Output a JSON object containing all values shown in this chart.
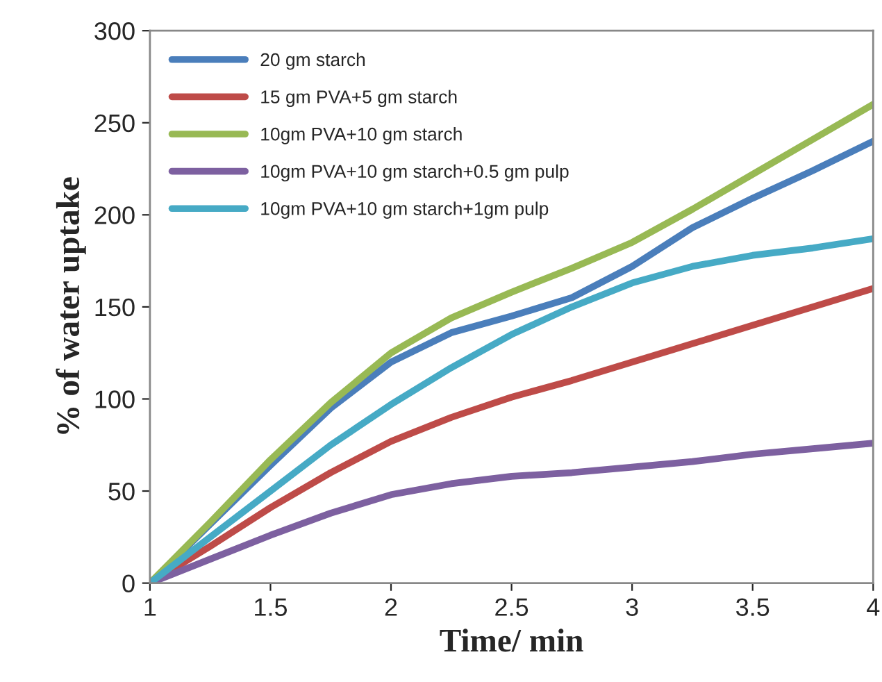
{
  "chart_data": {
    "type": "line",
    "xlabel": "Time/ min",
    "ylabel": "% of water uptake",
    "x": [
      1,
      1.25,
      1.5,
      1.75,
      2,
      2.25,
      2.5,
      2.75,
      3,
      3.25,
      3.5,
      3.75,
      4
    ],
    "series": [
      {
        "name": "20 gm starch",
        "color": "#4a7ebb",
        "values": [
          0,
          32,
          64,
          95,
          120,
          136,
          145,
          155,
          172,
          193,
          209,
          224,
          240
        ]
      },
      {
        "name": "15 gm PVA+5 gm starch",
        "color": "#be4b48",
        "values": [
          0,
          20,
          41,
          60,
          77,
          90,
          101,
          110,
          120,
          130,
          140,
          150,
          160
        ]
      },
      {
        "name": "10gm PVA+10 gm starch",
        "color": "#98b954",
        "values": [
          0,
          33,
          67,
          98,
          125,
          144,
          158,
          171,
          185,
          203,
          222,
          241,
          260
        ]
      },
      {
        "name": "10gm PVA+10 gm starch+0.5 gm pulp",
        "color": "#7d60a0",
        "values": [
          0,
          13,
          26,
          38,
          48,
          54,
          58,
          60,
          63,
          66,
          70,
          73,
          76
        ]
      },
      {
        "name": "10gm PVA+10 gm starch+1gm pulp",
        "color": "#46aac5",
        "values": [
          0,
          25,
          50,
          75,
          97,
          117,
          135,
          150,
          163,
          172,
          178,
          182,
          187
        ]
      }
    ],
    "xlim": [
      1,
      4
    ],
    "xticks": [
      1,
      1.5,
      2,
      2.5,
      3,
      3.5,
      4
    ],
    "ylim": [
      0,
      300
    ],
    "yticks": [
      0,
      50,
      100,
      150,
      200,
      250,
      300
    ],
    "grid": false,
    "legend": "top left",
    "marker": "none",
    "line_style": "solid"
  }
}
